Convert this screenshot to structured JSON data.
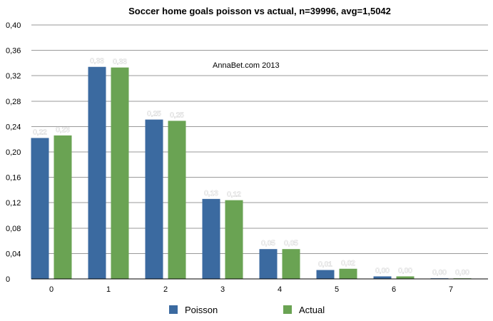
{
  "chart_data": {
    "type": "bar",
    "title": "Soccer home goals poisson vs actual, n=39996, avg=1,5042",
    "annotation": "AnnaBet.com 2013",
    "categories": [
      "0",
      "1",
      "2",
      "3",
      "4",
      "5",
      "6",
      "7"
    ],
    "series": [
      {
        "name": "Poisson",
        "color": "#3b6aa0",
        "values": [
          0.222,
          0.334,
          0.251,
          0.126,
          0.047,
          0.014,
          0.004,
          0.001
        ],
        "labels": [
          "0,22",
          "0,33",
          "0,25",
          "0,13",
          "0,05",
          "0,01",
          "0,00",
          "0,00"
        ]
      },
      {
        "name": "Actual",
        "color": "#6aa353",
        "values": [
          0.226,
          0.333,
          0.249,
          0.124,
          0.047,
          0.016,
          0.004,
          0.001
        ],
        "labels": [
          "0,23",
          "0,33",
          "0,25",
          "0,12",
          "0,05",
          "0,02",
          "0,00",
          "0,00"
        ]
      }
    ],
    "ylim": [
      0,
      0.4
    ],
    "yticks": [
      "0",
      "0,04",
      "0,08",
      "0,12",
      "0,16",
      "0,20",
      "0,24",
      "0,28",
      "0,32",
      "0,36",
      "0,40"
    ],
    "xlabel": "",
    "ylabel": "",
    "grid": true,
    "legend": "bottom-center"
  }
}
